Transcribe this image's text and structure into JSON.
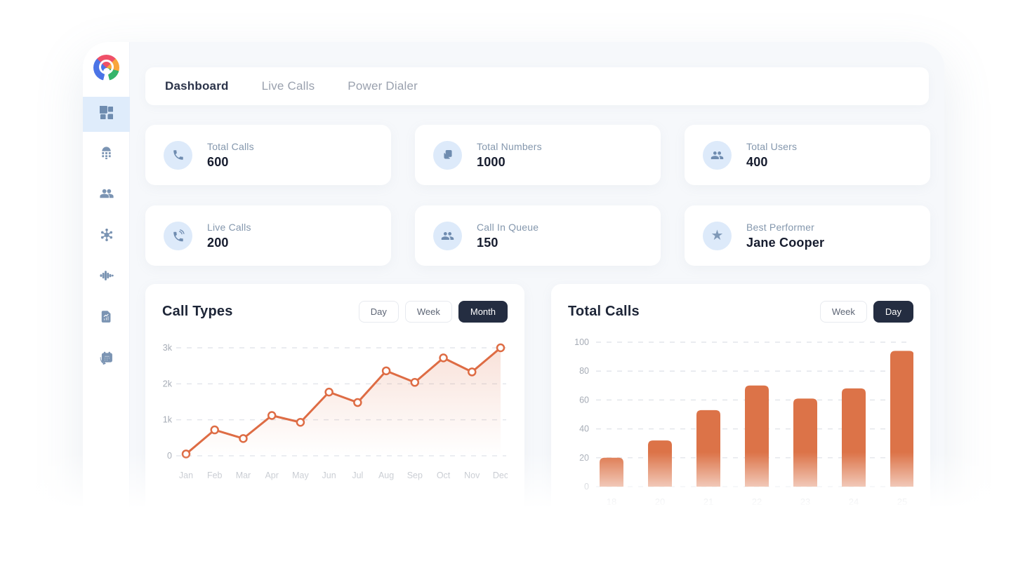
{
  "colors": {
    "accent_orange": "#DC7348",
    "line_orange": "#DE6C44",
    "dark_navy": "#242d41",
    "icon_slate": "#7b94b3",
    "icon_circle_bg": "#ddeafa",
    "sidebar_active_bg": "#dfecfb",
    "grid": "#e3e6eb",
    "axis_text": "#a6acb6"
  },
  "sidebar": {
    "logo": "multicolor-headset-logo",
    "items": [
      {
        "icon": "dashboard-grid-icon",
        "active": true
      },
      {
        "icon": "keypad-phone-icon",
        "active": false
      },
      {
        "icon": "users-icon",
        "active": false
      },
      {
        "icon": "hub-icon",
        "active": false
      },
      {
        "icon": "waveform-icon",
        "active": false
      },
      {
        "icon": "report-file-icon",
        "active": false
      },
      {
        "icon": "calendar-sync-icon",
        "active": false
      }
    ]
  },
  "nav": {
    "tabs": [
      {
        "label": "Dashboard",
        "active": true
      },
      {
        "label": "Live Calls",
        "active": false
      },
      {
        "label": "Power Dialer",
        "active": false
      }
    ]
  },
  "stats": [
    {
      "label": "Total Calls",
      "value": "600",
      "icon": "phone-icon"
    },
    {
      "label": "Total Numbers",
      "value": "1000",
      "icon": "numbers-page-icon"
    },
    {
      "label": "Total Users",
      "value": "400",
      "icon": "users-icon"
    },
    {
      "label": "Live Calls",
      "value": "200",
      "icon": "phone-wave-icon"
    },
    {
      "label": "Call In Queue",
      "value": "150",
      "icon": "queue-users-icon"
    },
    {
      "label": "Best Performer",
      "value": "Jane Cooper",
      "icon": "star-icon",
      "star_glyph": "★"
    }
  ],
  "panels": {
    "call_types": {
      "title": "Call Types",
      "toggles": [
        {
          "label": "Day",
          "active": false
        },
        {
          "label": "Week",
          "active": false
        },
        {
          "label": "Month",
          "active": true
        }
      ]
    },
    "total_calls": {
      "title": "Total Calls",
      "toggles": [
        {
          "label": "Week",
          "active": false
        },
        {
          "label": "Day",
          "active": true
        }
      ]
    }
  },
  "chart_data": [
    {
      "type": "line",
      "title": "Call Types",
      "x": [
        "Jan",
        "Feb",
        "Mar",
        "Apr",
        "May",
        "Jun",
        "Jul",
        "Aug",
        "Sep",
        "Oct",
        "Nov",
        "Dec"
      ],
      "values": [
        50,
        720,
        480,
        1120,
        930,
        1770,
        1480,
        2360,
        2040,
        2720,
        2330,
        3000
      ],
      "ylim": [
        0,
        3000
      ],
      "yticks": [
        "0",
        "1k",
        "2k",
        "3k"
      ],
      "ytick_values": [
        0,
        1000,
        2000,
        3000
      ],
      "grid": "dashed",
      "line_color": "#DE6C44",
      "marker": "open-circle",
      "area_fill": "orange-fade",
      "legend": "none"
    },
    {
      "type": "bar",
      "title": "Total Calls",
      "categories": [
        "18",
        "20",
        "21",
        "22",
        "23",
        "24",
        "25"
      ],
      "values": [
        20,
        32,
        53,
        70,
        61,
        68,
        94
      ],
      "ylim": [
        0,
        100
      ],
      "yticks": [
        "0",
        "20",
        "40",
        "60",
        "80",
        "100"
      ],
      "ytick_values": [
        0,
        20,
        40,
        60,
        80,
        100
      ],
      "grid": "dashed",
      "bar_color": "#DC7348",
      "legend": "none"
    }
  ]
}
